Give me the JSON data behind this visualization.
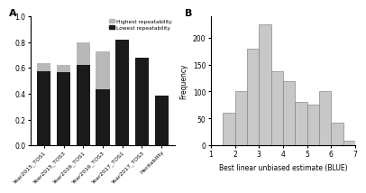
{
  "bar_categories": [
    "Year2015_TOS1",
    "Year2015_TOS3",
    "Year2016_TOS1",
    "Year2016_TOS3",
    "Year2017_TOS1",
    "Year2017_TOS3",
    "Heritability"
  ],
  "lowest_values": [
    0.575,
    0.565,
    0.62,
    0.435,
    0.82,
    0.68,
    0.385
  ],
  "highest_values": [
    0.635,
    0.625,
    0.795,
    0.73,
    0.82,
    0.68,
    0.385
  ],
  "bar_color_lowest": "#1a1a1a",
  "bar_color_highest": "#b8b8b8",
  "panel_a_ylim": [
    0.0,
    1.0
  ],
  "panel_a_yticks": [
    0.0,
    0.2,
    0.4,
    0.6,
    0.8,
    1.0
  ],
  "legend_labels": [
    "Highest repeatability",
    "Lowest repeatability"
  ],
  "hist_bin_edges": [
    1.5,
    2.0,
    2.5,
    3.0,
    3.5,
    4.0,
    4.5,
    5.0,
    5.5,
    6.0,
    6.5,
    7.0
  ],
  "hist_counts": [
    60,
    100,
    180,
    225,
    138,
    120,
    80,
    75,
    100,
    42,
    8
  ],
  "hist_color": "#c8c8c8",
  "hist_edgecolor": "#888888",
  "panel_b_xlabel": "Best linear unbiased estimate (BLUE)",
  "panel_b_ylabel": "Frequency",
  "panel_b_xlim": [
    1,
    7
  ],
  "panel_b_ylim": [
    0,
    240
  ],
  "panel_b_xticks": [
    1,
    2,
    3,
    4,
    5,
    6,
    7
  ],
  "panel_b_yticks": [
    0,
    50,
    100,
    150,
    200
  ],
  "label_a": "A",
  "label_b": "B",
  "fig_bg": "#ffffff"
}
